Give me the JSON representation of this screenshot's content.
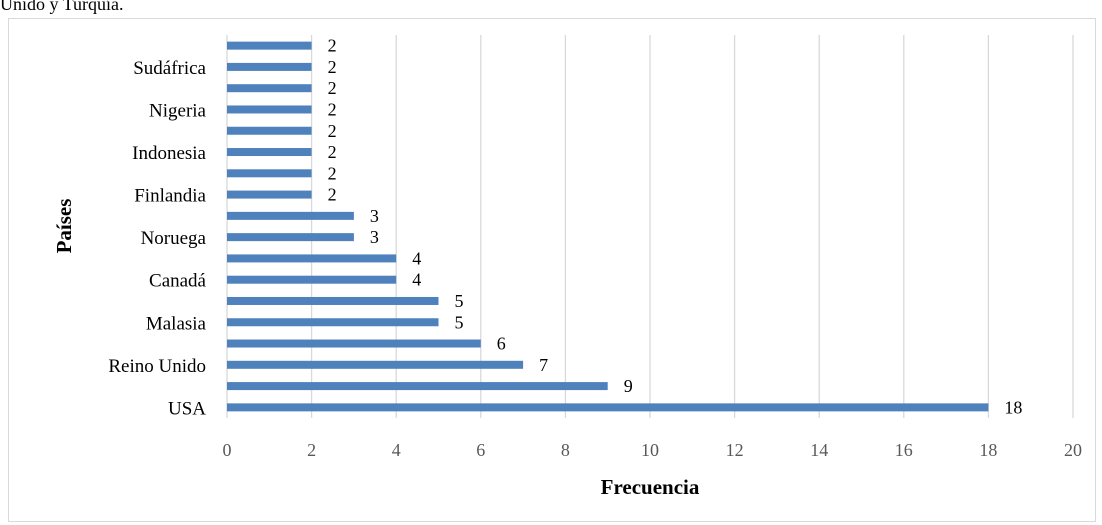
{
  "caption_fragment": "Unido y Turquía.",
  "chart_data": {
    "type": "bar",
    "orientation": "horizontal",
    "categories": [
      "USA",
      "",
      "Reino Unido",
      "",
      "Malasia",
      "",
      "Canadá",
      "",
      "Noruega",
      "",
      "Finlandia",
      "",
      "Indonesia",
      "",
      "Nigeria",
      "",
      "Sudáfrica",
      ""
    ],
    "values": [
      18,
      9,
      7,
      6,
      5,
      5,
      4,
      4,
      3,
      3,
      2,
      2,
      2,
      2,
      2,
      2,
      2,
      2
    ],
    "xlabel": "Frecuencia",
    "ylabel": "Países",
    "xlim": [
      0,
      20
    ],
    "xticks": [
      0,
      2,
      4,
      6,
      8,
      10,
      12,
      14,
      16,
      18,
      20
    ],
    "grid": "vertical",
    "bar_color": "#4f81bd",
    "data_labels": true
  }
}
